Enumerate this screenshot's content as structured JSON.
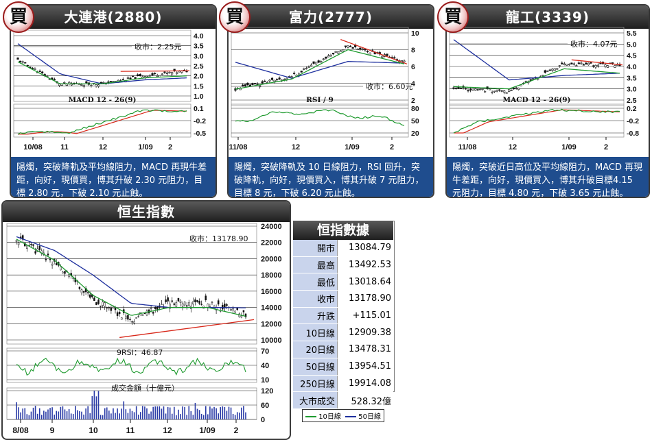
{
  "buy_badge": "買",
  "panels": [
    {
      "title": "大連港(2880)",
      "close_label": "收市：2.25元",
      "desc": "陽燭，突破降軌及平均線阻力，MACD 再現牛差距，向好，現價買，博其升破 2.30 元阻力，目標 2.80 元，下破 2.10 元止蝕。",
      "price_ticks": [
        "4.0",
        "3.5",
        "3.0",
        "2.5",
        "2.0",
        "1.5",
        "1.0"
      ],
      "ind_label": "MACD 12 - 26(9)",
      "ind_ticks": [
        "0.1",
        "-0.2",
        "-0.5"
      ],
      "x_ticks": [
        "10/08",
        "11",
        "12",
        "1/09",
        "2"
      ]
    },
    {
      "title": "富力(2777)",
      "close_label": "收市：6.60元",
      "desc": "陽燭，突破降軌及 10 日線阻力，RSI 回升，突破降軌，向好，現價買入，博其升破 7 元阻力，目標 8 元，下破 6.20 元止蝕。",
      "price_ticks": [
        "10",
        "8",
        "6",
        "4",
        "2"
      ],
      "ind_label": "RSI / 9",
      "ind_ticks": [
        "80",
        "50",
        "20"
      ],
      "x_ticks": [
        "11/08",
        "12",
        "1/09",
        "2"
      ]
    },
    {
      "title": "龍工(3339)",
      "close_label": "收市：4.07元",
      "desc": "陽燭，突破近日高位及平均線阻力，MACD 再現牛差距，向好，現價買入，博其升破目標4.15 元阻力，目標 4.80 元，下破 3.65 元止蝕。",
      "price_ticks": [
        "5.5",
        "5.0",
        "4.5",
        "4.0",
        "3.5",
        "3.0",
        "2.5"
      ],
      "ind_label": "MACD 12 - 26(9)",
      "ind_ticks": [
        "0.2",
        "-0.2",
        "-0.8"
      ],
      "x_ticks": [
        "11/08",
        "12",
        "1/09",
        "2"
      ]
    }
  ],
  "hsi": {
    "title": "恒生指數",
    "close_label": "收市：13178.90",
    "price_ticks": [
      "24000",
      "22000",
      "20000",
      "18000",
      "16000",
      "14000",
      "12000",
      "10000"
    ],
    "rsi_label": "9RSI：46.87",
    "rsi_ticks": [
      "70",
      "40",
      "10"
    ],
    "vol_label": "成交金額（十億元）",
    "vol_ticks": [
      "120",
      "60",
      "0"
    ],
    "x_ticks": [
      "8/08",
      "9",
      "10",
      "11",
      "12",
      "1/09",
      "2"
    ]
  },
  "stats": {
    "title": "恒指數據",
    "rows": [
      {
        "k": "開市",
        "v": "13084.79"
      },
      {
        "k": "最高",
        "v": "13492.53"
      },
      {
        "k": "最低",
        "v": "13018.64"
      },
      {
        "k": "收市",
        "v": "13178.90"
      },
      {
        "k": "升跌",
        "v": "+115.01"
      },
      {
        "k": "10日線",
        "v": "12909.38"
      },
      {
        "k": "20日線",
        "v": "13478.31"
      },
      {
        "k": "50日線",
        "v": "13954.51"
      },
      {
        "k": "250日線",
        "v": "19914.08"
      },
      {
        "k": "大市成交",
        "v": "528.32億"
      }
    ]
  },
  "legend": {
    "ma10": "10日線",
    "ma50": "50日線"
  },
  "colors": {
    "ma10": "#1e9a2e",
    "ma50": "#1d2f9e",
    "trend": "#d8281a",
    "header": "#2b2b2b",
    "desc_bg": "#1f4d8e"
  },
  "chart_data": [
    {
      "type": "line",
      "name": "大連港(2880)",
      "x": [
        "10/08",
        "11",
        "12",
        "1/09",
        "2"
      ],
      "series": [
        {
          "name": "price",
          "values": [
            2.8,
            1.6,
            1.6,
            2.0,
            2.25
          ]
        },
        {
          "name": "10日線",
          "values": [
            2.7,
            1.6,
            1.6,
            1.9,
            2.0
          ]
        },
        {
          "name": "50日線",
          "values": [
            3.6,
            2.1,
            1.6,
            1.8,
            1.9
          ]
        }
      ],
      "ylim": [
        1.0,
        4.0
      ],
      "close": 2.25
    },
    {
      "type": "line",
      "name": "富力(2777)",
      "x": [
        "11/08",
        "12",
        "1/09",
        "2"
      ],
      "series": [
        {
          "name": "price",
          "values": [
            3.3,
            4.8,
            8.5,
            6.6
          ]
        },
        {
          "name": "10日線",
          "values": [
            3.3,
            4.5,
            8.0,
            6.3
          ]
        },
        {
          "name": "50日線",
          "values": [
            6.5,
            4.6,
            6.6,
            6.4
          ]
        }
      ],
      "ylim": [
        2,
        10
      ],
      "close": 6.6
    },
    {
      "type": "line",
      "name": "龍工(3339)",
      "x": [
        "11/08",
        "12",
        "1/09",
        "2"
      ],
      "series": [
        {
          "name": "price",
          "values": [
            3.0,
            2.9,
            4.1,
            4.07
          ]
        },
        {
          "name": "10日線",
          "values": [
            3.1,
            3.0,
            3.9,
            3.7
          ]
        },
        {
          "name": "50日線",
          "values": [
            5.2,
            3.4,
            3.6,
            3.7
          ]
        }
      ],
      "ylim": [
        2.5,
        5.5
      ],
      "close": 4.07
    },
    {
      "type": "line",
      "name": "恒生指數",
      "x": [
        "8/08",
        "9",
        "10",
        "11",
        "12",
        "1/09",
        "2"
      ],
      "series": [
        {
          "name": "price",
          "values": [
            22500,
            19500,
            15000,
            12500,
            14500,
            14500,
            13178.9
          ]
        },
        {
          "name": "10日線",
          "values": [
            22400,
            19800,
            15500,
            13000,
            14000,
            14000,
            12909.38
          ]
        },
        {
          "name": "50日線",
          "values": [
            22700,
            21000,
            18000,
            14500,
            14000,
            14000,
            13954.51
          ]
        }
      ],
      "ylim": [
        10000,
        24000
      ],
      "close": 13178.9,
      "rsi": 46.87
    }
  ]
}
